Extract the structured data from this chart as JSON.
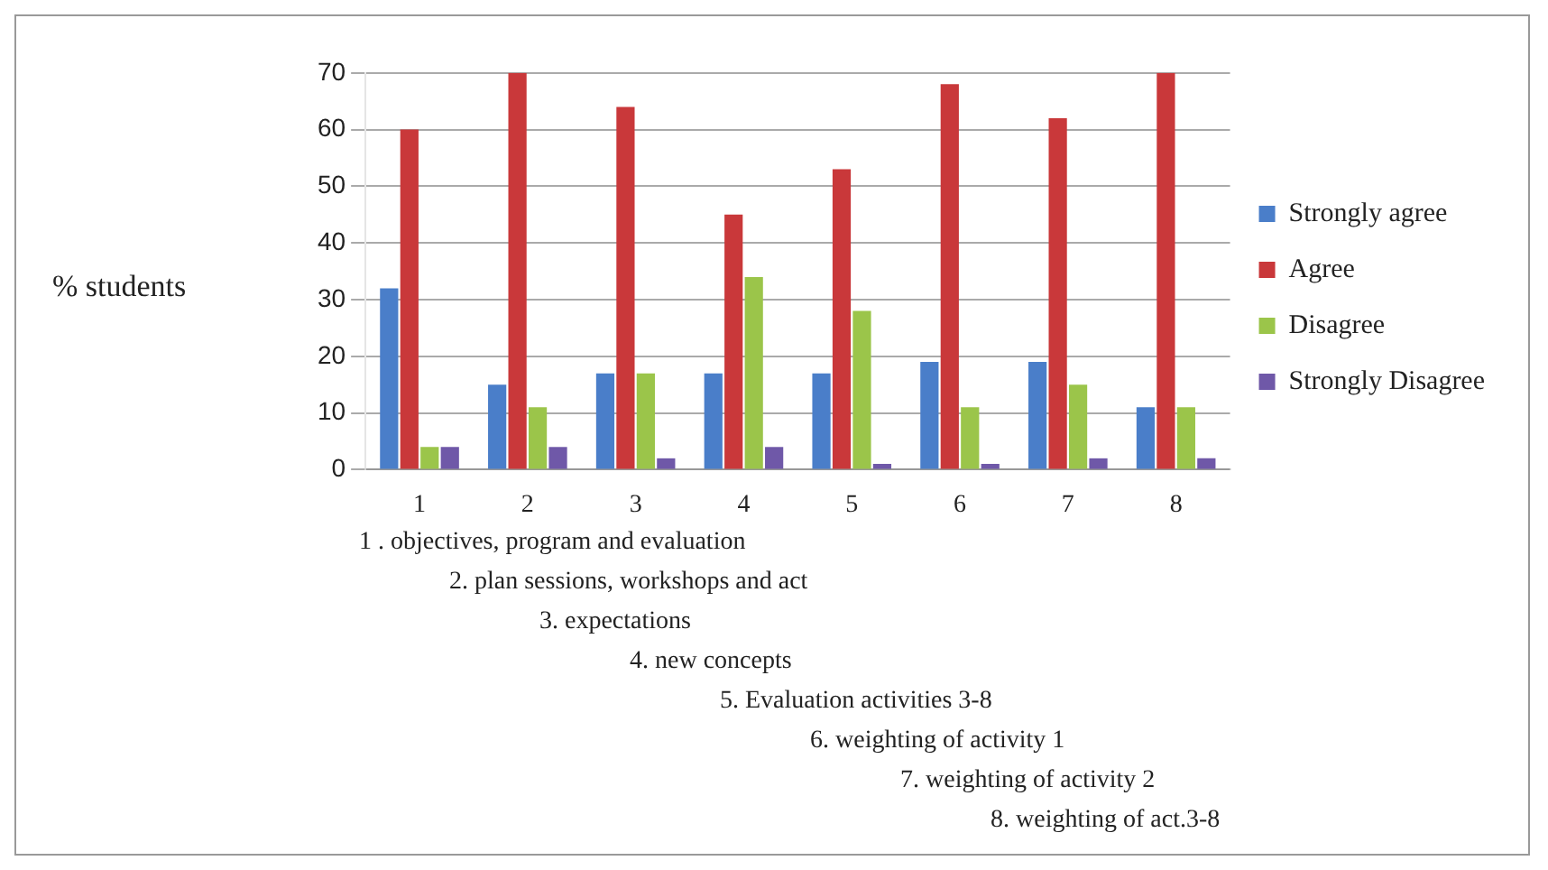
{
  "chart_data": {
    "type": "bar",
    "ylabel": "% students",
    "categories": [
      "1",
      "2",
      "3",
      "4",
      "5",
      "6",
      "7",
      "8"
    ],
    "series": [
      {
        "name": "Strongly agree",
        "color": "#4a7ec9",
        "values": [
          32,
          15,
          17,
          17,
          17,
          19,
          19,
          11
        ]
      },
      {
        "name": "Agree",
        "color": "#c9383a",
        "values": [
          60,
          70,
          64,
          45,
          53,
          68,
          62,
          70
        ]
      },
      {
        "name": "Disagree",
        "color": "#9bc54a",
        "values": [
          4,
          11,
          17,
          34,
          28,
          11,
          15,
          11
        ]
      },
      {
        "name": "Strongly Disagree",
        "color": "#6f58a8",
        "values": [
          4,
          4,
          2,
          4,
          1,
          1,
          2,
          2
        ]
      }
    ],
    "ylim": [
      0,
      70
    ],
    "yticks": [
      0,
      10,
      20,
      30,
      40,
      50,
      60,
      70
    ],
    "grid": "y",
    "legend": "right",
    "annotations": [
      "1 . objectives, program and evaluation",
      "2. plan sessions, workshops and act",
      "3. expectations",
      "4. new concepts",
      "5. Evaluation activities 3-8",
      "6. weighting of activity 1",
      "7. weighting of activity 2",
      "8. weighting of act.3-8"
    ]
  }
}
